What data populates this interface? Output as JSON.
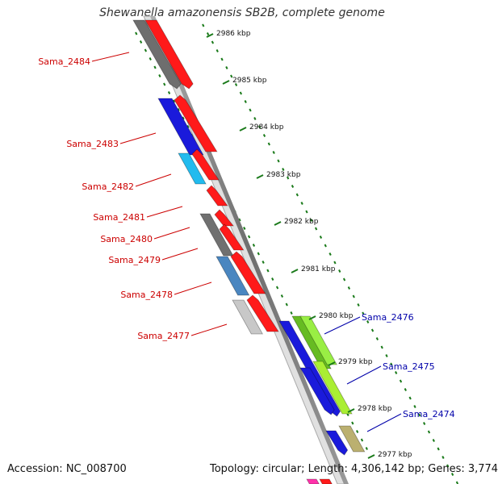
{
  "title": "Shewanella amazonensis SB2B, complete genome",
  "footer": {
    "accession": "Accession: NC_008700",
    "stats": "Topology: circular; Length: 4,306,142 bp; Genes: 3,774"
  },
  "kbp_labels": [
    "2986 kbp",
    "2985 kbp",
    "2984 kbp",
    "2983 kbp",
    "2982 kbp",
    "2981 kbp",
    "2980 kbp",
    "2979 kbp",
    "2978 kbp",
    "2977 kbp"
  ],
  "genes_left": [
    "Sama_2484",
    "Sama_2483",
    "Sama_2482",
    "Sama_2481",
    "Sama_2480",
    "Sama_2479",
    "Sama_2478",
    "Sama_2477"
  ],
  "genes_right": [
    "Sama_2476",
    "Sama_2475",
    "Sama_2474"
  ],
  "colors": {
    "left_label": "#cc0000",
    "right_label": "#0000aa",
    "ruler": "#1a7a1a",
    "backbone": "#888888"
  }
}
